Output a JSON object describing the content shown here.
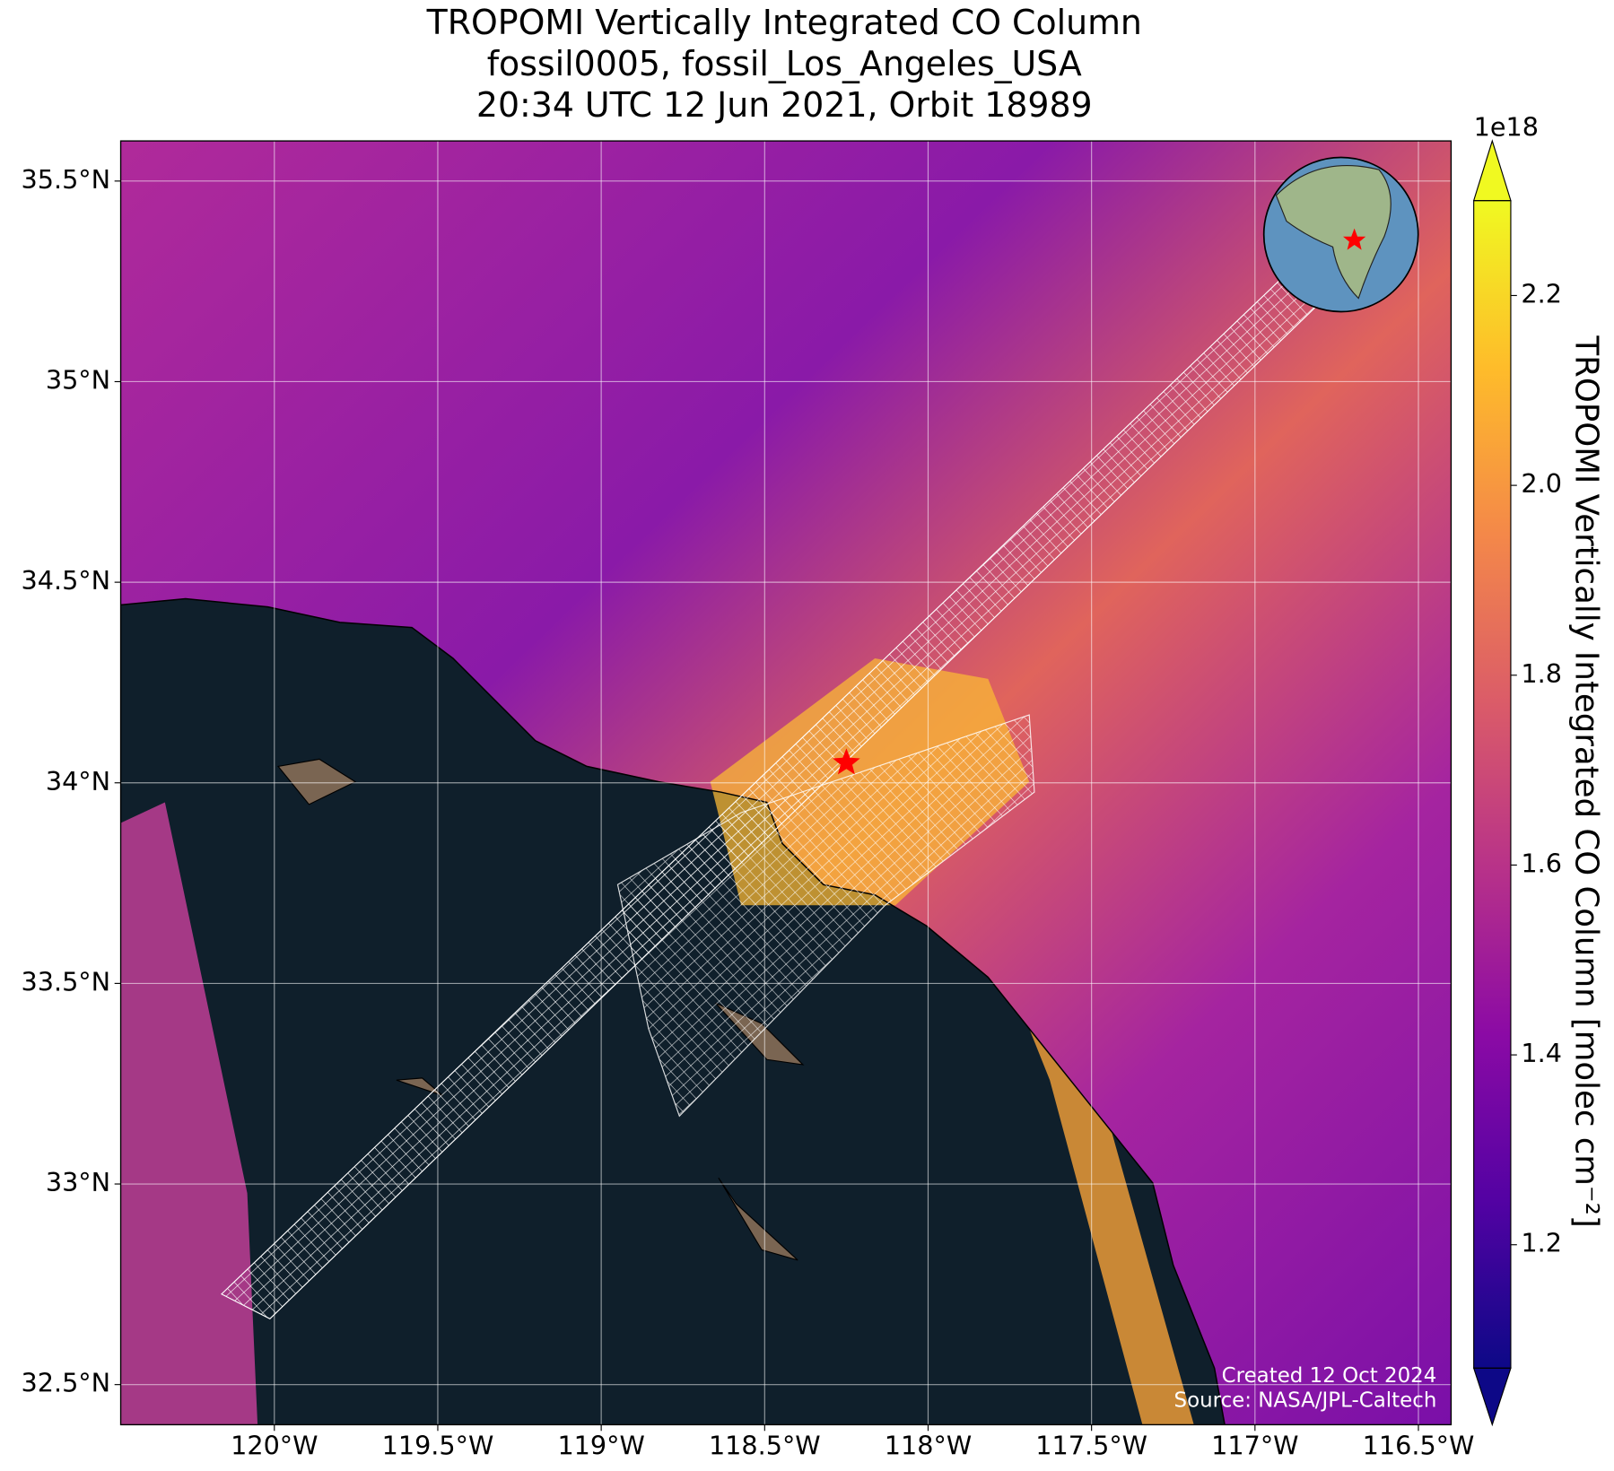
{
  "chart_data": {
    "type": "map",
    "title": [
      "TROPOMI Vertically Integrated CO Column",
      "fossil0005, fossil_Los_Angeles_USA",
      "20:34 UTC 12 Jun 2021, Orbit 18989"
    ],
    "xlim": [
      -120.47,
      -116.4
    ],
    "xticks": [
      {
        "value": -120,
        "label": "120°W"
      },
      {
        "value": -119.5,
        "label": "119.5°W"
      },
      {
        "value": -119,
        "label": "119°W"
      },
      {
        "value": -118.5,
        "label": "118.5°W"
      },
      {
        "value": -118,
        "label": "118°W"
      },
      {
        "value": -117.5,
        "label": "117.5°W"
      },
      {
        "value": -117,
        "label": "117°W"
      },
      {
        "value": -116.5,
        "label": "116.5°W"
      }
    ],
    "ylim": [
      32.4,
      35.6
    ],
    "yticks": [
      {
        "value": 32.5,
        "label": "32.5°N"
      },
      {
        "value": 33,
        "label": "33°N"
      },
      {
        "value": 33.5,
        "label": "33.5°N"
      },
      {
        "value": 34,
        "label": "34°N"
      },
      {
        "value": 34.5,
        "label": "34.5°N"
      },
      {
        "value": 35,
        "label": "35°N"
      },
      {
        "value": 35.5,
        "label": "35.5°N"
      }
    ],
    "grid": true,
    "site": {
      "lon": -118.25,
      "lat": 34.05,
      "color": "#ff0000"
    },
    "colorbar": {
      "colormap": "plasma",
      "lim": [
        1.07,
        2.3
      ],
      "offset_label": "1e18",
      "ticks": [
        1.2,
        1.4,
        1.6,
        1.8,
        {
          "value": 2,
          "label": "2.0"
        },
        2.2
      ],
      "label": "TROPOMI Vertically Integrated CO Column [molec cm⁻²]"
    },
    "credits": [
      "Created 12 Oct 2024",
      "Source: NASA/JPL-Caltech"
    ]
  }
}
